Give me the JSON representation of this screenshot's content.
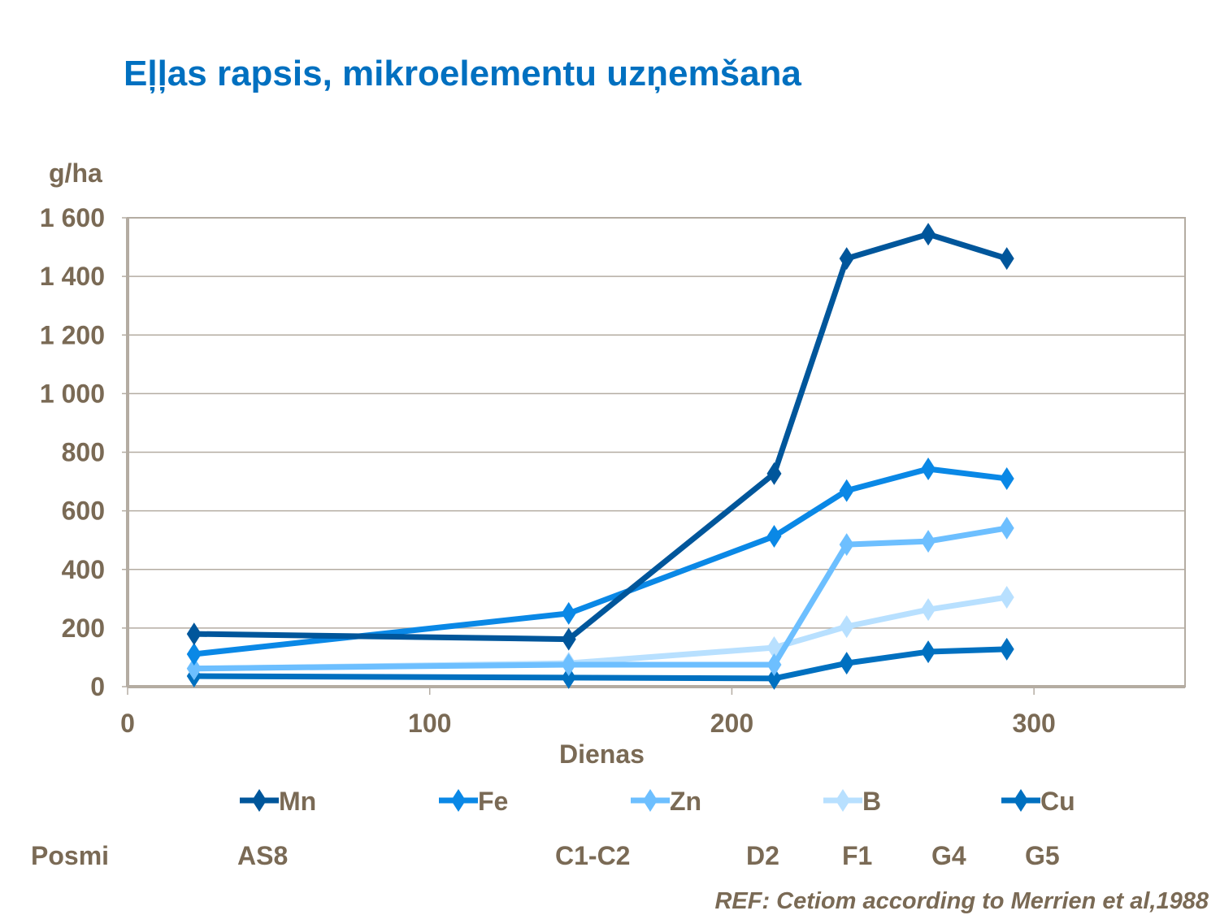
{
  "chart_data": {
    "type": "line",
    "title": "Eļļas rapsis, mikroelementu uzņemšana",
    "ylabel": "g/ha",
    "xlabel": "Dienas",
    "xlim": [
      0,
      350
    ],
    "ylim": [
      0,
      1600
    ],
    "xticks": [
      0,
      100,
      200,
      300
    ],
    "yticks": [
      0,
      200,
      400,
      600,
      800,
      1000,
      1200,
      1400,
      1600
    ],
    "ytick_labels": [
      "0",
      "200",
      "400",
      "600",
      "800",
      "1 000",
      "1 200",
      "1 400",
      "1 600"
    ],
    "grid": "horizontal",
    "legend_position": "bottom",
    "x": [
      22,
      146,
      214,
      238,
      265,
      291
    ],
    "series": [
      {
        "name": "Mn",
        "color": "#00569b",
        "values": [
          180,
          162,
          727,
          1461,
          1544,
          1461
        ]
      },
      {
        "name": "Fe",
        "color": "#0a88e6",
        "values": [
          111,
          250,
          513,
          669,
          743,
          710
        ]
      },
      {
        "name": "Zn",
        "color": "#6dbfff",
        "values": [
          62,
          75,
          75,
          485,
          496,
          541
        ]
      },
      {
        "name": "B",
        "color": "#b8e0ff",
        "values": [
          61,
          80,
          133,
          205,
          263,
          305
        ]
      },
      {
        "name": "Cu",
        "color": "#0070c0",
        "values": [
          36,
          31,
          28,
          80,
          119,
          128
        ]
      }
    ]
  },
  "stages": {
    "label": "Posmi",
    "items": [
      "AS8",
      "C1-C2",
      "D2",
      "F1",
      "G4",
      "G5"
    ]
  },
  "reference": "REF: Cetiom according to Merrien et al,1988"
}
